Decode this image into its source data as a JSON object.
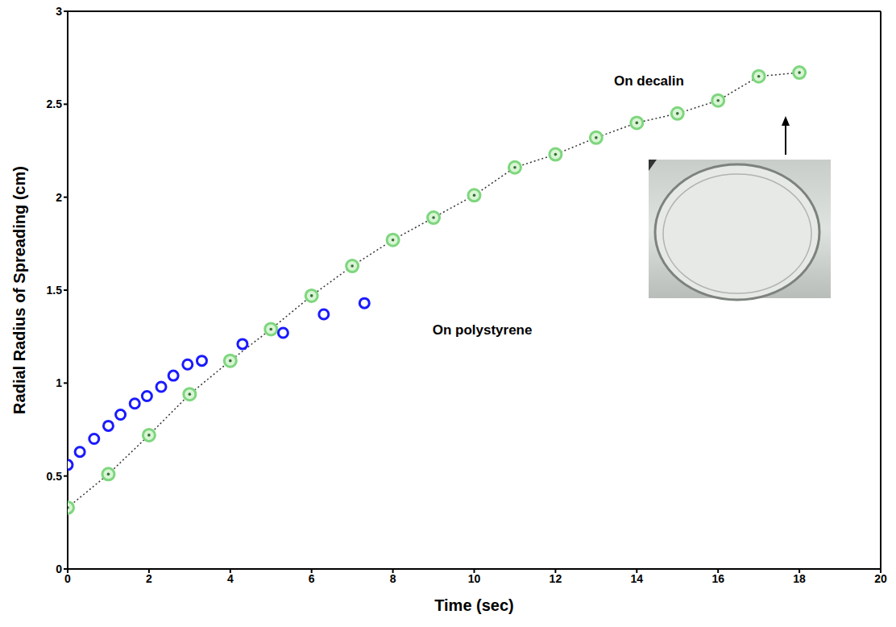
{
  "chart_data": {
    "type": "scatter",
    "x_label": "Time (sec)",
    "y_label": "Radial Radius of Spreading (cm)",
    "xlim": [
      0,
      20
    ],
    "xticks": [
      0,
      2,
      4,
      6,
      8,
      10,
      12,
      14,
      16,
      18,
      20
    ],
    "ylim": [
      0,
      3
    ],
    "yticks": [
      0,
      0.5,
      1,
      1.5,
      2,
      2.5,
      3
    ],
    "grid": false,
    "series": [
      {
        "name": "On decalin",
        "color": "#7ed67e",
        "marker": "circle",
        "line_style": "dotted",
        "x": [
          0,
          1,
          2,
          3,
          4,
          5,
          6,
          7,
          8,
          9,
          10,
          11,
          12,
          13,
          14,
          15,
          16,
          17,
          18
        ],
        "values": [
          0.33,
          0.51,
          0.72,
          0.94,
          1.12,
          1.29,
          1.47,
          1.63,
          1.77,
          1.89,
          2.01,
          2.16,
          2.23,
          2.32,
          2.4,
          2.45,
          2.52,
          2.65,
          2.67
        ]
      },
      {
        "name": "On polystyrene",
        "color": "#1a1aff",
        "marker": "open_circle",
        "x": [
          0,
          0.3,
          0.65,
          1,
          1.3,
          1.65,
          1.95,
          2.3,
          2.6,
          2.95,
          3.3,
          4.3,
          5.3,
          6.3,
          7.3
        ],
        "values": [
          0.56,
          0.63,
          0.7,
          0.77,
          0.83,
          0.89,
          0.93,
          0.98,
          1.04,
          1.1,
          1.12,
          1.21,
          1.27,
          1.37,
          1.43
        ]
      }
    ],
    "annotations": [
      {
        "text": "On decalin",
        "x": 14.3,
        "y": 2.62
      },
      {
        "text": "On polystyrene",
        "x": 10.2,
        "y": 1.28
      }
    ]
  }
}
